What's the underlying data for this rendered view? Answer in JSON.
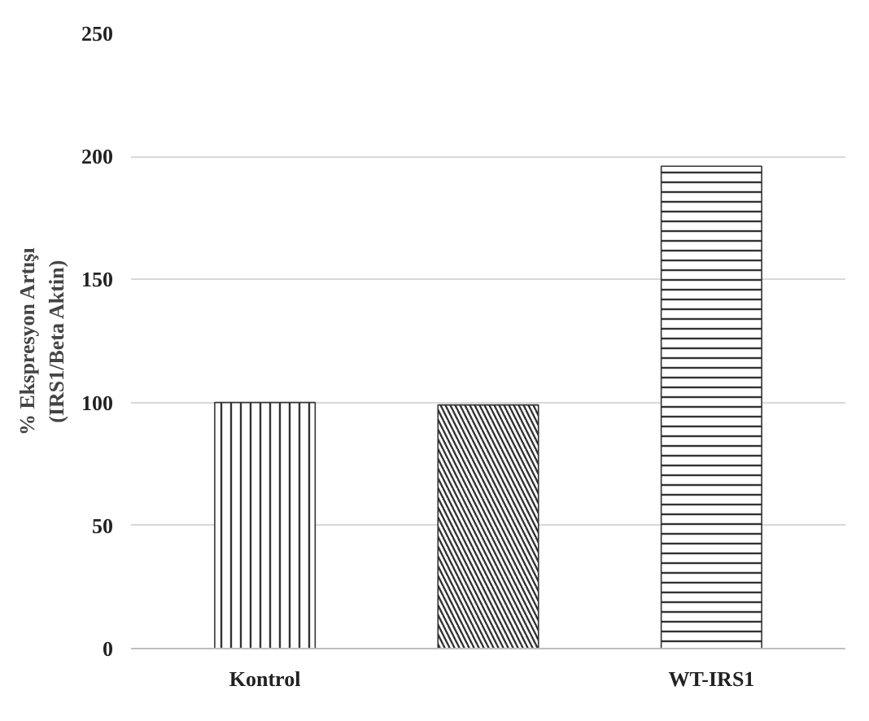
{
  "chart_data": {
    "type": "bar",
    "ylabel": "% Ekspresyon Artışı\n(IRS1/Beta Aktin)",
    "categories": [
      "Kontrol",
      null,
      "WT-IRS1"
    ],
    "values": [
      100,
      99,
      196
    ],
    "colors": [
      "#333333",
      "#333333",
      "#333333"
    ],
    "ylim": [
      0,
      250
    ],
    "yticks": [
      0,
      50,
      100,
      150,
      200,
      250
    ],
    "grid": "y"
  }
}
